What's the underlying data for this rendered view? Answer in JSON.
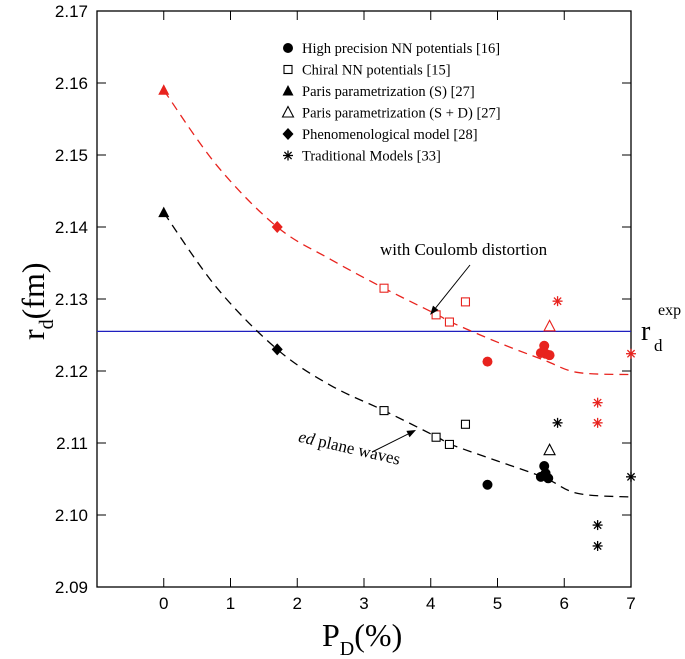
{
  "chart_data": {
    "type": "scatter",
    "xlabel": {
      "main": "P",
      "sub": "D",
      "suffix": "(%)"
    },
    "ylabel": {
      "main": "r",
      "sub": "d",
      "suffix": "(fm)"
    },
    "xlim": [
      -1,
      7
    ],
    "ylim": [
      2.09,
      2.17
    ],
    "xticks": [
      0,
      1,
      2,
      3,
      4,
      5,
      6,
      7
    ],
    "yticks": [
      2.09,
      2.1,
      2.11,
      2.12,
      2.13,
      2.14,
      2.15,
      2.16,
      2.17
    ],
    "grid": false,
    "legend_position": "top-right",
    "legend": [
      {
        "marker": "filled-circle",
        "label": "High precision NN potentials [16]"
      },
      {
        "marker": "open-square",
        "label": "Chiral NN potentials [15]"
      },
      {
        "marker": "filled-triangle",
        "label": "Paris parametrization (S) [27]"
      },
      {
        "marker": "open-triangle",
        "label": "Paris parametrization (S + D) [27]"
      },
      {
        "marker": "filled-diamond",
        "label": "Phenomenological model [28]"
      },
      {
        "marker": "asterisk",
        "label": "Traditional Models [33]"
      }
    ],
    "reference_line": {
      "y": 2.1255,
      "color": "#1f1fbf",
      "label_main": "r",
      "label_sub": "d",
      "label_sup": "exp"
    },
    "fits": [
      {
        "color": "#e8231e",
        "x": [
          0,
          0.8,
          1.7,
          2.5,
          3.3,
          4.1,
          4.3,
          5.0,
          5.7,
          6.2,
          7.0
        ],
        "y": [
          2.159,
          2.1485,
          2.14,
          2.1355,
          2.1315,
          2.1278,
          2.1268,
          2.124,
          2.1215,
          2.1198,
          2.1195
        ]
      },
      {
        "color": "#000000",
        "x": [
          0,
          0.8,
          1.7,
          2.5,
          3.3,
          4.1,
          4.3,
          5.0,
          5.7,
          6.2,
          7.0
        ],
        "y": [
          2.142,
          2.1315,
          2.123,
          2.118,
          2.1145,
          2.1108,
          2.1098,
          2.1075,
          2.1052,
          2.103,
          2.1025
        ]
      }
    ],
    "series_red": {
      "color": "#e8231e",
      "filled-circle": [
        [
          4.85,
          2.1213
        ],
        [
          5.65,
          2.1225
        ],
        [
          5.7,
          2.1235
        ],
        [
          5.72,
          2.1224
        ],
        [
          5.78,
          2.1222
        ]
      ],
      "open-square": [
        [
          3.3,
          2.1315
        ],
        [
          4.08,
          2.1278
        ],
        [
          4.28,
          2.1268
        ],
        [
          4.52,
          2.1296
        ]
      ],
      "filled-triangle": [
        [
          0,
          2.159
        ]
      ],
      "open-triangle": [
        [
          5.78,
          2.1262
        ]
      ],
      "filled-diamond": [
        [
          1.7,
          2.14
        ]
      ],
      "asterisk": [
        [
          5.9,
          2.1297
        ],
        [
          6.5,
          2.1156
        ],
        [
          6.5,
          2.1128
        ],
        [
          7.0,
          2.1224
        ]
      ]
    },
    "series_black": {
      "color": "#000000",
      "filled-circle": [
        [
          4.85,
          2.1042
        ],
        [
          5.65,
          2.1053
        ],
        [
          5.7,
          2.1068
        ],
        [
          5.72,
          2.1058
        ],
        [
          5.76,
          2.1051
        ]
      ],
      "open-square": [
        [
          3.3,
          2.1145
        ],
        [
          4.08,
          2.1108
        ],
        [
          4.28,
          2.1098
        ],
        [
          4.52,
          2.1126
        ]
      ],
      "filled-triangle": [
        [
          0,
          2.142
        ]
      ],
      "open-triangle": [
        [
          5.78,
          2.109
        ]
      ],
      "filled-diamond": [
        [
          1.7,
          2.123
        ]
      ],
      "asterisk": [
        [
          5.9,
          2.1128
        ],
        [
          6.5,
          2.0986
        ],
        [
          6.5,
          2.0957
        ],
        [
          7.0,
          2.1053
        ]
      ]
    },
    "annotations": [
      {
        "text": "with Coulomb distortion",
        "arrow_to": [
          4.05,
          2.1271
        ]
      },
      {
        "text_italic": "ed",
        "text": " plane waves",
        "arrow_to": [
          3.3,
          2.1118
        ]
      }
    ]
  }
}
